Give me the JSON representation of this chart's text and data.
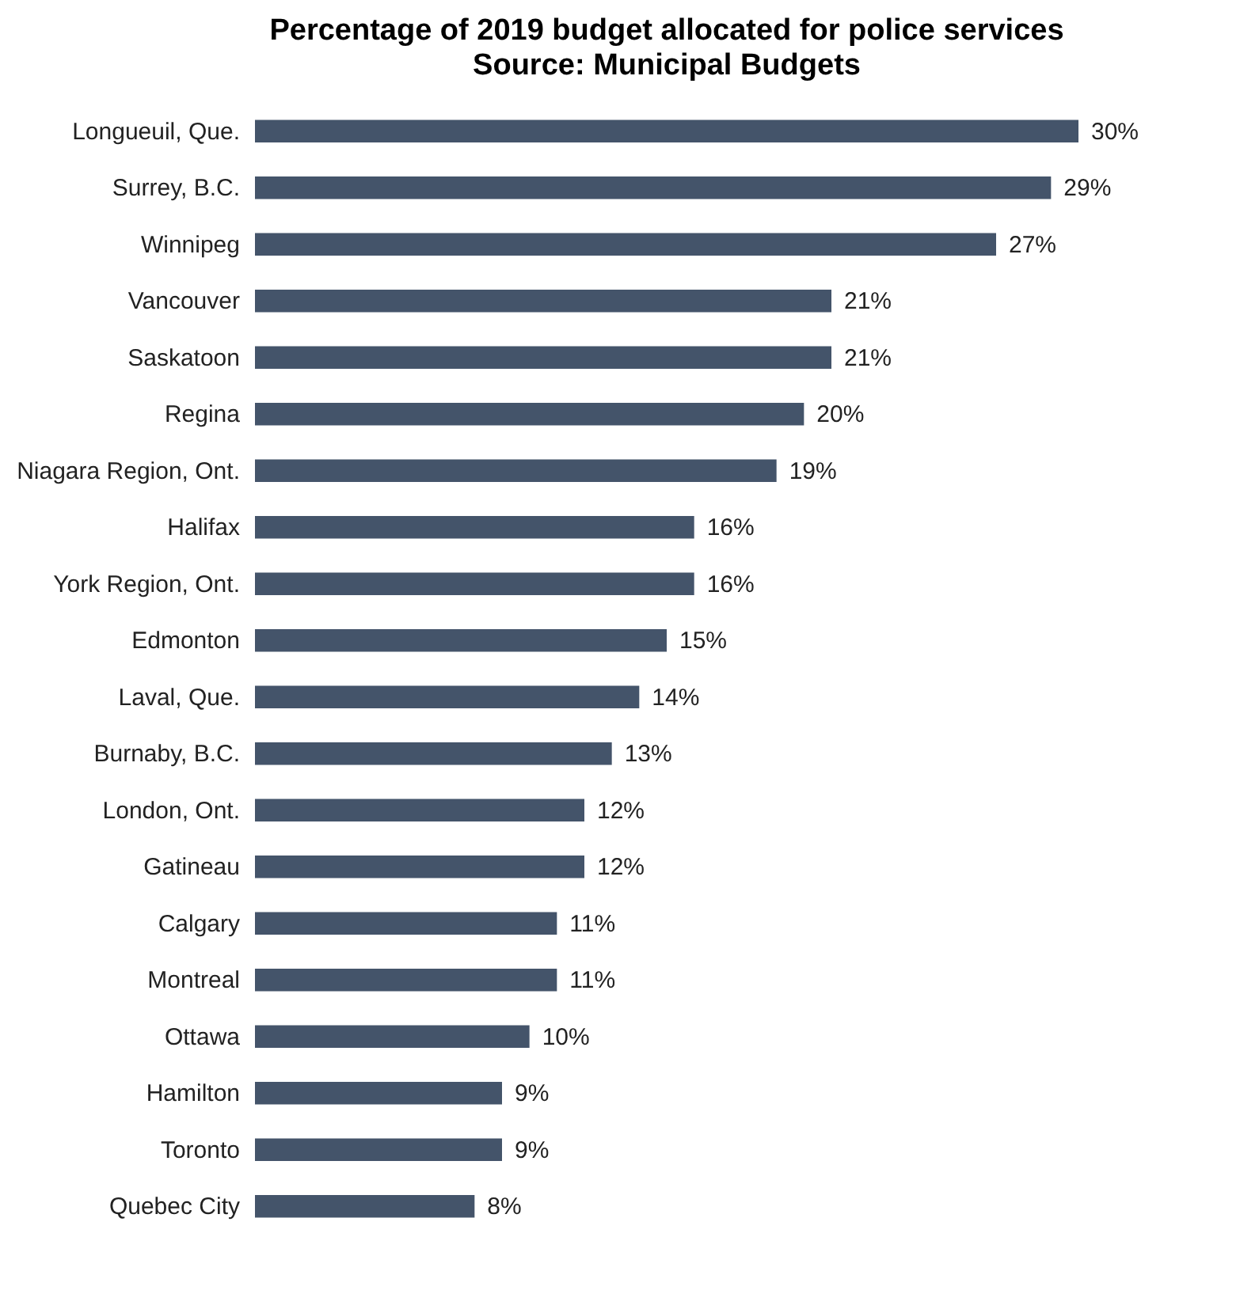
{
  "chart_data": {
    "type": "bar",
    "orientation": "horizontal",
    "title": "Percentage of 2019 budget allocated for police services",
    "subtitle": "Source: Municipal Budgets",
    "categories": [
      "Longueuil, Que.",
      "Surrey, B.C.",
      "Winnipeg",
      "Vancouver",
      "Saskatoon",
      "Regina",
      "Niagara Region, Ont.",
      "Halifax",
      "York Region, Ont.",
      "Edmonton",
      "Laval, Que.",
      "Burnaby, B.C.",
      "London, Ont.",
      "Gatineau",
      "Calgary",
      "Montreal",
      "Ottawa",
      "Hamilton",
      "Toronto",
      "Quebec City"
    ],
    "values": [
      30,
      29,
      27,
      21,
      21,
      20,
      19,
      16,
      16,
      15,
      14,
      13,
      12,
      12,
      11,
      11,
      10,
      9,
      9,
      8
    ],
    "value_labels": [
      "30%",
      "29%",
      "27%",
      "21%",
      "21%",
      "20%",
      "19%",
      "16%",
      "16%",
      "15%",
      "14%",
      "13%",
      "12%",
      "12%",
      "11%",
      "11%",
      "10%",
      "9%",
      "9%",
      "8%"
    ],
    "color": "#44546a",
    "grid": false
  }
}
